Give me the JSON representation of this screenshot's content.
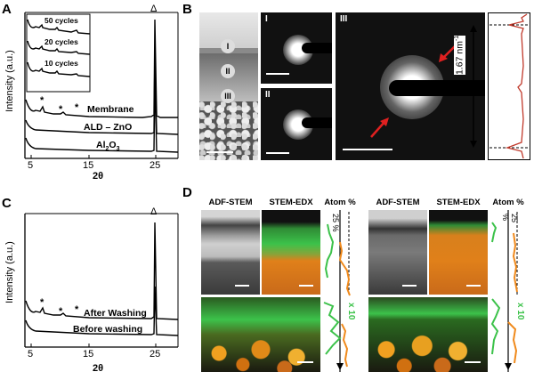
{
  "panels": {
    "A": {
      "letter": "A",
      "ylabel": "Intensity (a.u.)",
      "xlabel": "2θ",
      "xticks": [
        "5",
        "15",
        "25"
      ],
      "peak_marker": "Δ",
      "star": "*",
      "traces": [
        "Membrane",
        "ALD – ZnO",
        "Al",
        "2",
        "O",
        "3"
      ],
      "inset_labels": [
        "50 cycles",
        "20 cycles",
        "10 cycles"
      ]
    },
    "B": {
      "letter": "B",
      "roman": [
        "I",
        "II",
        "III"
      ],
      "dspacing": "1.67 nm",
      "dspacing_sup": "-1"
    },
    "C": {
      "letter": "C",
      "ylabel": "Intensity (a.u.)",
      "xlabel": "2θ",
      "xticks": [
        "5",
        "15",
        "25"
      ],
      "peak_marker": "Δ",
      "star": "*",
      "traces": [
        "After Washing",
        "Before washing"
      ]
    },
    "D": {
      "letter": "D",
      "col_labels": [
        "ADF-STEM",
        "STEM-EDX",
        "Atom %",
        "ADF-STEM",
        "STEM-EDX",
        "Atom %"
      ],
      "scale_25": "25 %",
      "scale_x10": "x 10"
    }
  },
  "colors": {
    "zn_green": "#3cc24a",
    "al_orange": "#f08a1c",
    "line_red": "#c0392b",
    "arrow_red": "#e02020"
  }
}
